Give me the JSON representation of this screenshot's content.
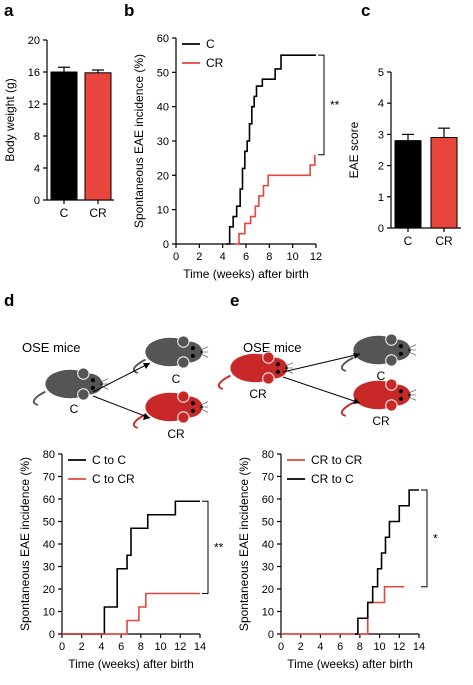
{
  "panels": {
    "a": "a",
    "b": "b",
    "c": "c",
    "d": "d",
    "e": "e"
  },
  "diagrams": {
    "d": {
      "label": "OSE mice",
      "source": "C",
      "targets": [
        "C",
        "CR"
      ]
    },
    "e": {
      "label": "OSE mice",
      "source": "CR",
      "targets": [
        "C",
        "CR"
      ]
    }
  },
  "colors": {
    "C": "#000000",
    "CR": "#e8453c",
    "mouse_gray": "#555555",
    "mouse_red": "#c82828"
  },
  "chart_data": [
    {
      "id": "a",
      "type": "bar",
      "categories": [
        "C",
        "CR"
      ],
      "values": [
        16.0,
        15.9
      ],
      "errors": [
        0.6,
        0.35
      ],
      "colors": [
        "#000000",
        "#e8453c"
      ],
      "title": "",
      "xlabel": "",
      "ylabel": "Body weight (g)",
      "ylim": [
        0,
        20
      ],
      "yticks": [
        0,
        4,
        8,
        12,
        16,
        20
      ],
      "grid": false
    },
    {
      "id": "b",
      "type": "line",
      "step": true,
      "xlabel": "Time (weeks) after birth",
      "ylabel": "Spontaneous EAE incidence (%)",
      "xlim": [
        0,
        12
      ],
      "ylim": [
        0,
        60
      ],
      "xticks": [
        0,
        2,
        4,
        6,
        8,
        10,
        12
      ],
      "yticks": [
        0,
        10,
        20,
        30,
        40,
        50,
        60
      ],
      "legend_position": "top-left",
      "series": [
        {
          "name": "C",
          "color": "#000000",
          "x": [
            4.3,
            4.6,
            4.9,
            5.2,
            5.5,
            5.7,
            5.9,
            6.1,
            6.3,
            6.5,
            6.7,
            6.9,
            7.1,
            7.4,
            8.0,
            8.5,
            9.0,
            9.5,
            12.0
          ],
          "y": [
            0,
            5,
            8,
            11,
            16,
            22,
            27,
            30,
            35,
            40,
            43,
            46,
            46,
            48,
            48,
            51,
            55,
            55,
            55
          ]
        },
        {
          "name": "CR",
          "color": "#e8453c",
          "x": [
            5.0,
            5.4,
            5.9,
            6.4,
            6.8,
            7.1,
            7.5,
            7.9,
            8.5,
            10.0,
            11.5,
            11.9
          ],
          "y": [
            0,
            3,
            6,
            8,
            11,
            14,
            17,
            20,
            20,
            20,
            23,
            26
          ]
        }
      ],
      "annotation": "**"
    },
    {
      "id": "c",
      "type": "bar",
      "categories": [
        "C",
        "CR"
      ],
      "values": [
        2.8,
        2.9
      ],
      "errors": [
        0.2,
        0.3
      ],
      "colors": [
        "#000000",
        "#e8453c"
      ],
      "title": "",
      "xlabel": "",
      "ylabel": "EAE score",
      "ylim": [
        0,
        5
      ],
      "yticks": [
        0,
        1,
        2,
        3,
        4,
        5
      ],
      "grid": false
    },
    {
      "id": "d",
      "type": "line",
      "step": true,
      "xlabel": "Time (weeks) after birth",
      "ylabel": "Spontaneous EAE incidence (%)",
      "xlim": [
        0,
        14
      ],
      "ylim": [
        0,
        80
      ],
      "xticks": [
        0,
        2,
        4,
        6,
        8,
        10,
        12,
        14
      ],
      "yticks": [
        0,
        10,
        20,
        30,
        40,
        50,
        60,
        70,
        80
      ],
      "legend_position": "top-left",
      "series": [
        {
          "name": "C to C",
          "color": "#000000",
          "x": [
            0,
            4.3,
            4.9,
            5.6,
            6.6,
            7.0,
            7.9,
            8.7,
            10.3,
            11.5,
            14.0
          ],
          "y": [
            0,
            12,
            12,
            29,
            35,
            47,
            47,
            53,
            53,
            59,
            59
          ]
        },
        {
          "name": "C to CR",
          "color": "#e8453c",
          "x": [
            0,
            5.9,
            6.6,
            7.8,
            8.5,
            14.0
          ],
          "y": [
            0,
            0,
            6,
            12,
            18,
            18
          ]
        }
      ],
      "annotation": "**"
    },
    {
      "id": "e",
      "type": "line",
      "step": true,
      "xlabel": "Time (weeks) after birth",
      "ylabel": "Spontaneous EAE incidence (%)",
      "xlim": [
        0,
        14
      ],
      "ylim": [
        0,
        80
      ],
      "xticks": [
        0,
        2,
        4,
        6,
        8,
        10,
        12,
        14
      ],
      "yticks": [
        0,
        10,
        20,
        30,
        40,
        50,
        60,
        70,
        80
      ],
      "legend_position": "top-left",
      "series": [
        {
          "name": "CR to CR",
          "color": "#e8453c",
          "x": [
            0,
            8.3,
            8.8,
            10.5,
            12.5
          ],
          "y": [
            0,
            0,
            14,
            21,
            21
          ]
        },
        {
          "name": "CR to C",
          "color": "#000000",
          "x": [
            7.5,
            7.8,
            8.8,
            9.3,
            9.8,
            10.2,
            10.6,
            11.0,
            12.0,
            13.0,
            14.0
          ],
          "y": [
            0,
            7,
            14,
            21,
            29,
            36,
            43,
            50,
            57,
            64,
            64
          ]
        }
      ],
      "annotation": "*"
    }
  ]
}
